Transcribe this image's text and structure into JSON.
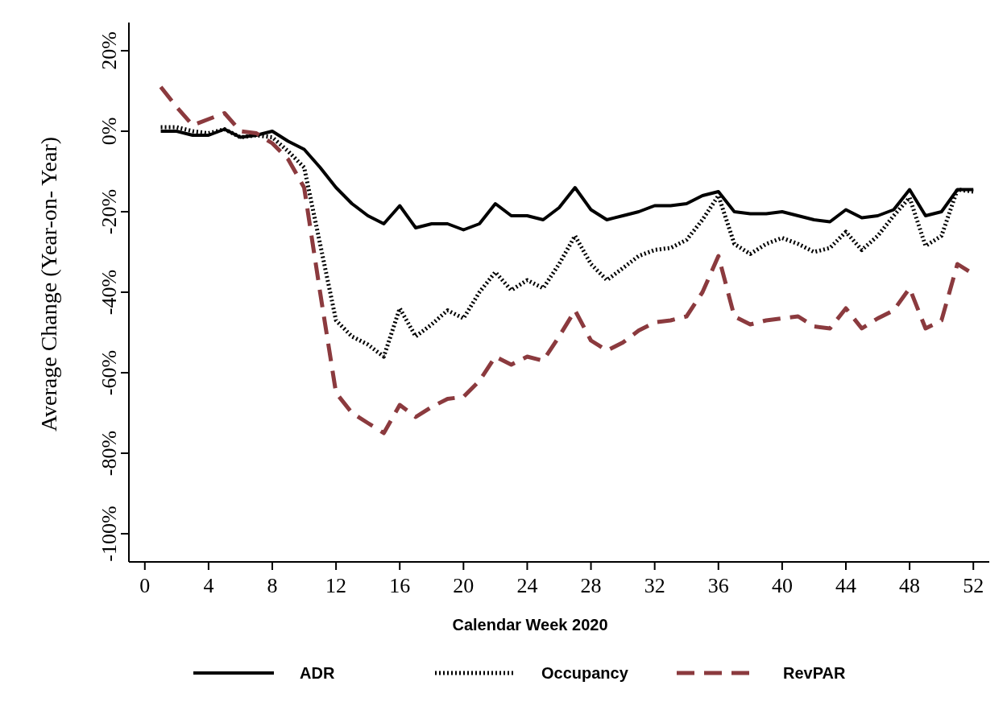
{
  "chart_data": {
    "type": "line",
    "xlabel": "Calendar Week 2020",
    "ylabel": "Average Change (Year-on- Year)",
    "x": [
      1,
      2,
      3,
      4,
      5,
      6,
      7,
      8,
      9,
      10,
      11,
      12,
      13,
      14,
      15,
      16,
      17,
      18,
      19,
      20,
      21,
      22,
      23,
      24,
      25,
      26,
      27,
      28,
      29,
      30,
      31,
      32,
      33,
      34,
      35,
      36,
      37,
      38,
      39,
      40,
      41,
      42,
      43,
      44,
      45,
      46,
      47,
      48,
      49,
      50,
      51,
      52
    ],
    "series": [
      {
        "name": "ADR",
        "color": "#000000",
        "line_style": "solid",
        "values": [
          0,
          0,
          -1,
          -1,
          0.5,
          -1.5,
          -1,
          0,
          -2.5,
          -4.5,
          -9,
          -14,
          -18,
          -21,
          -23,
          -18.5,
          -24,
          -23,
          -23,
          -24.5,
          -23,
          -18,
          -21,
          -21,
          -22,
          -19,
          -14,
          -19.5,
          -22,
          -21,
          -20,
          -18.5,
          -18.5,
          -18,
          -16,
          -15,
          -20,
          -20.5,
          -20.5,
          -20,
          -21,
          -22,
          -22.5,
          -19.5,
          -21.5,
          -21,
          -19.5,
          -14.5,
          -21,
          -20,
          -14.5,
          -14.5
        ]
      },
      {
        "name": "Occupancy",
        "color": "#000000",
        "line_style": "dotted",
        "values": [
          1,
          1,
          0,
          -0.5,
          0.5,
          -1.5,
          -1,
          -1.5,
          -5,
          -9,
          -28,
          -47,
          -51,
          -53,
          -56,
          -44,
          -51,
          -48,
          -44.5,
          -46.5,
          -40,
          -35,
          -39.5,
          -37,
          -39,
          -33,
          -26,
          -33,
          -37,
          -34,
          -31,
          -29.5,
          -29,
          -27,
          -22,
          -16,
          -28,
          -30.5,
          -28,
          -26.5,
          -28,
          -30,
          -29,
          -25,
          -29.5,
          -26,
          -21,
          -16.5,
          -28.5,
          -26,
          -14.5,
          -15
        ]
      },
      {
        "name": "RevPAR",
        "color": "#8b3a3e",
        "line_style": "dashed",
        "values": [
          11,
          6,
          1.5,
          3,
          4.5,
          0,
          -0.5,
          -3,
          -7,
          -14,
          -40,
          -65,
          -70,
          -72.5,
          -75,
          -68,
          -71,
          -68.5,
          -66.5,
          -66,
          -62,
          -56,
          -58,
          -56,
          -57,
          -51,
          -44.5,
          -52,
          -54.5,
          -52.5,
          -49.5,
          -47.5,
          -47,
          -46,
          -40,
          -31,
          -46,
          -48,
          -47,
          -46.5,
          -46,
          -48.5,
          -49,
          -44,
          -49,
          -46.5,
          -44.5,
          -39,
          -49,
          -47,
          -33,
          -35.5
        ]
      }
    ],
    "xlim": [
      -1,
      53
    ],
    "xticks": [
      0,
      4,
      8,
      12,
      16,
      20,
      24,
      28,
      32,
      36,
      40,
      44,
      48,
      52
    ],
    "ylim": [
      -107,
      27
    ],
    "yticks": [
      {
        "value": 20,
        "label": "20%"
      },
      {
        "value": 0,
        "label": "0%"
      },
      {
        "value": -20,
        "label": "-20%"
      },
      {
        "value": -40,
        "label": "-40%"
      },
      {
        "value": -60,
        "label": "-60%"
      },
      {
        "value": -80,
        "label": "-80%"
      },
      {
        "value": -100,
        "label": "-100%"
      }
    ],
    "grid": false,
    "legend": "bottom"
  }
}
